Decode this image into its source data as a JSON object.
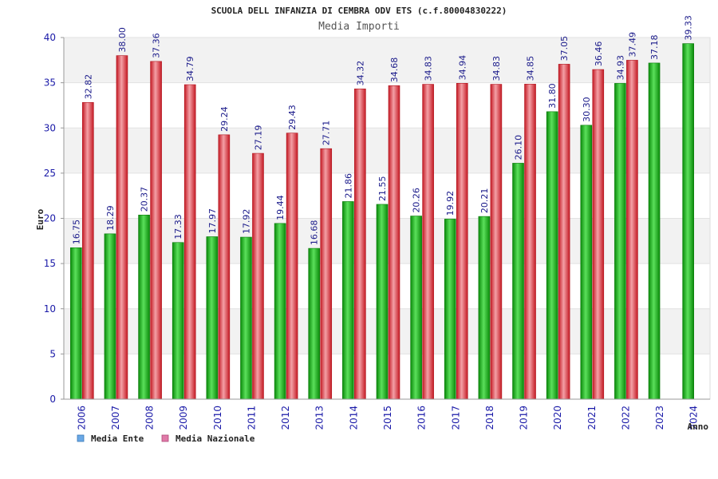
{
  "chart_data": {
    "type": "bar",
    "title": "SCUOLA DELL INFANZIA DI CEMBRA ODV ETS (c.f.80004830222)",
    "subtitle": "Media Importi",
    "xlabel": "Anno",
    "ylabel": "Euro",
    "ylim": [
      0,
      40
    ],
    "yticks": [
      0,
      5,
      10,
      15,
      20,
      25,
      30,
      35,
      40
    ],
    "categories": [
      "2006",
      "2007",
      "2008",
      "2009",
      "2010",
      "2011",
      "2012",
      "2013",
      "2014",
      "2015",
      "2016",
      "2017",
      "2018",
      "2019",
      "2020",
      "2021",
      "2022",
      "2023",
      "2024"
    ],
    "series": [
      {
        "name": "Media Ente",
        "color": "#22b822",
        "values": [
          16.75,
          18.29,
          20.37,
          17.33,
          17.97,
          17.92,
          19.44,
          16.68,
          21.86,
          21.55,
          20.26,
          19.92,
          20.21,
          26.1,
          31.8,
          30.3,
          34.93,
          37.18,
          39.33
        ],
        "labels": [
          "16.75",
          "18.29",
          "20.37",
          "17.33",
          "17.97",
          "17.92",
          "19.44",
          "16.68",
          "21.86",
          "21.55",
          "20.26",
          "19.92",
          "20.21",
          "26.10",
          "31.80",
          "30.30",
          "34.93",
          "37.18",
          "39.33"
        ]
      },
      {
        "name": "Media Nazionale",
        "color": "#e83a44",
        "values": [
          32.82,
          38.0,
          37.36,
          34.79,
          29.24,
          27.19,
          29.43,
          27.71,
          34.32,
          34.68,
          34.83,
          34.94,
          34.83,
          34.85,
          37.05,
          36.46,
          37.49,
          null,
          null
        ],
        "labels": [
          "32.82",
          "38.00",
          "37.36",
          "34.79",
          "29.24",
          "27.19",
          "29.43",
          "27.71",
          "34.32",
          "34.68",
          "34.83",
          "34.94",
          "34.83",
          "34.85",
          "37.05",
          "36.46",
          "37.49",
          null,
          null
        ]
      }
    ],
    "legend": [
      {
        "label": "Media Ente",
        "color": "#6aa8e6"
      },
      {
        "label": "Media Nazionale",
        "color": "#e07aa8"
      }
    ],
    "legend_position": "bottom-left",
    "grid": true
  }
}
